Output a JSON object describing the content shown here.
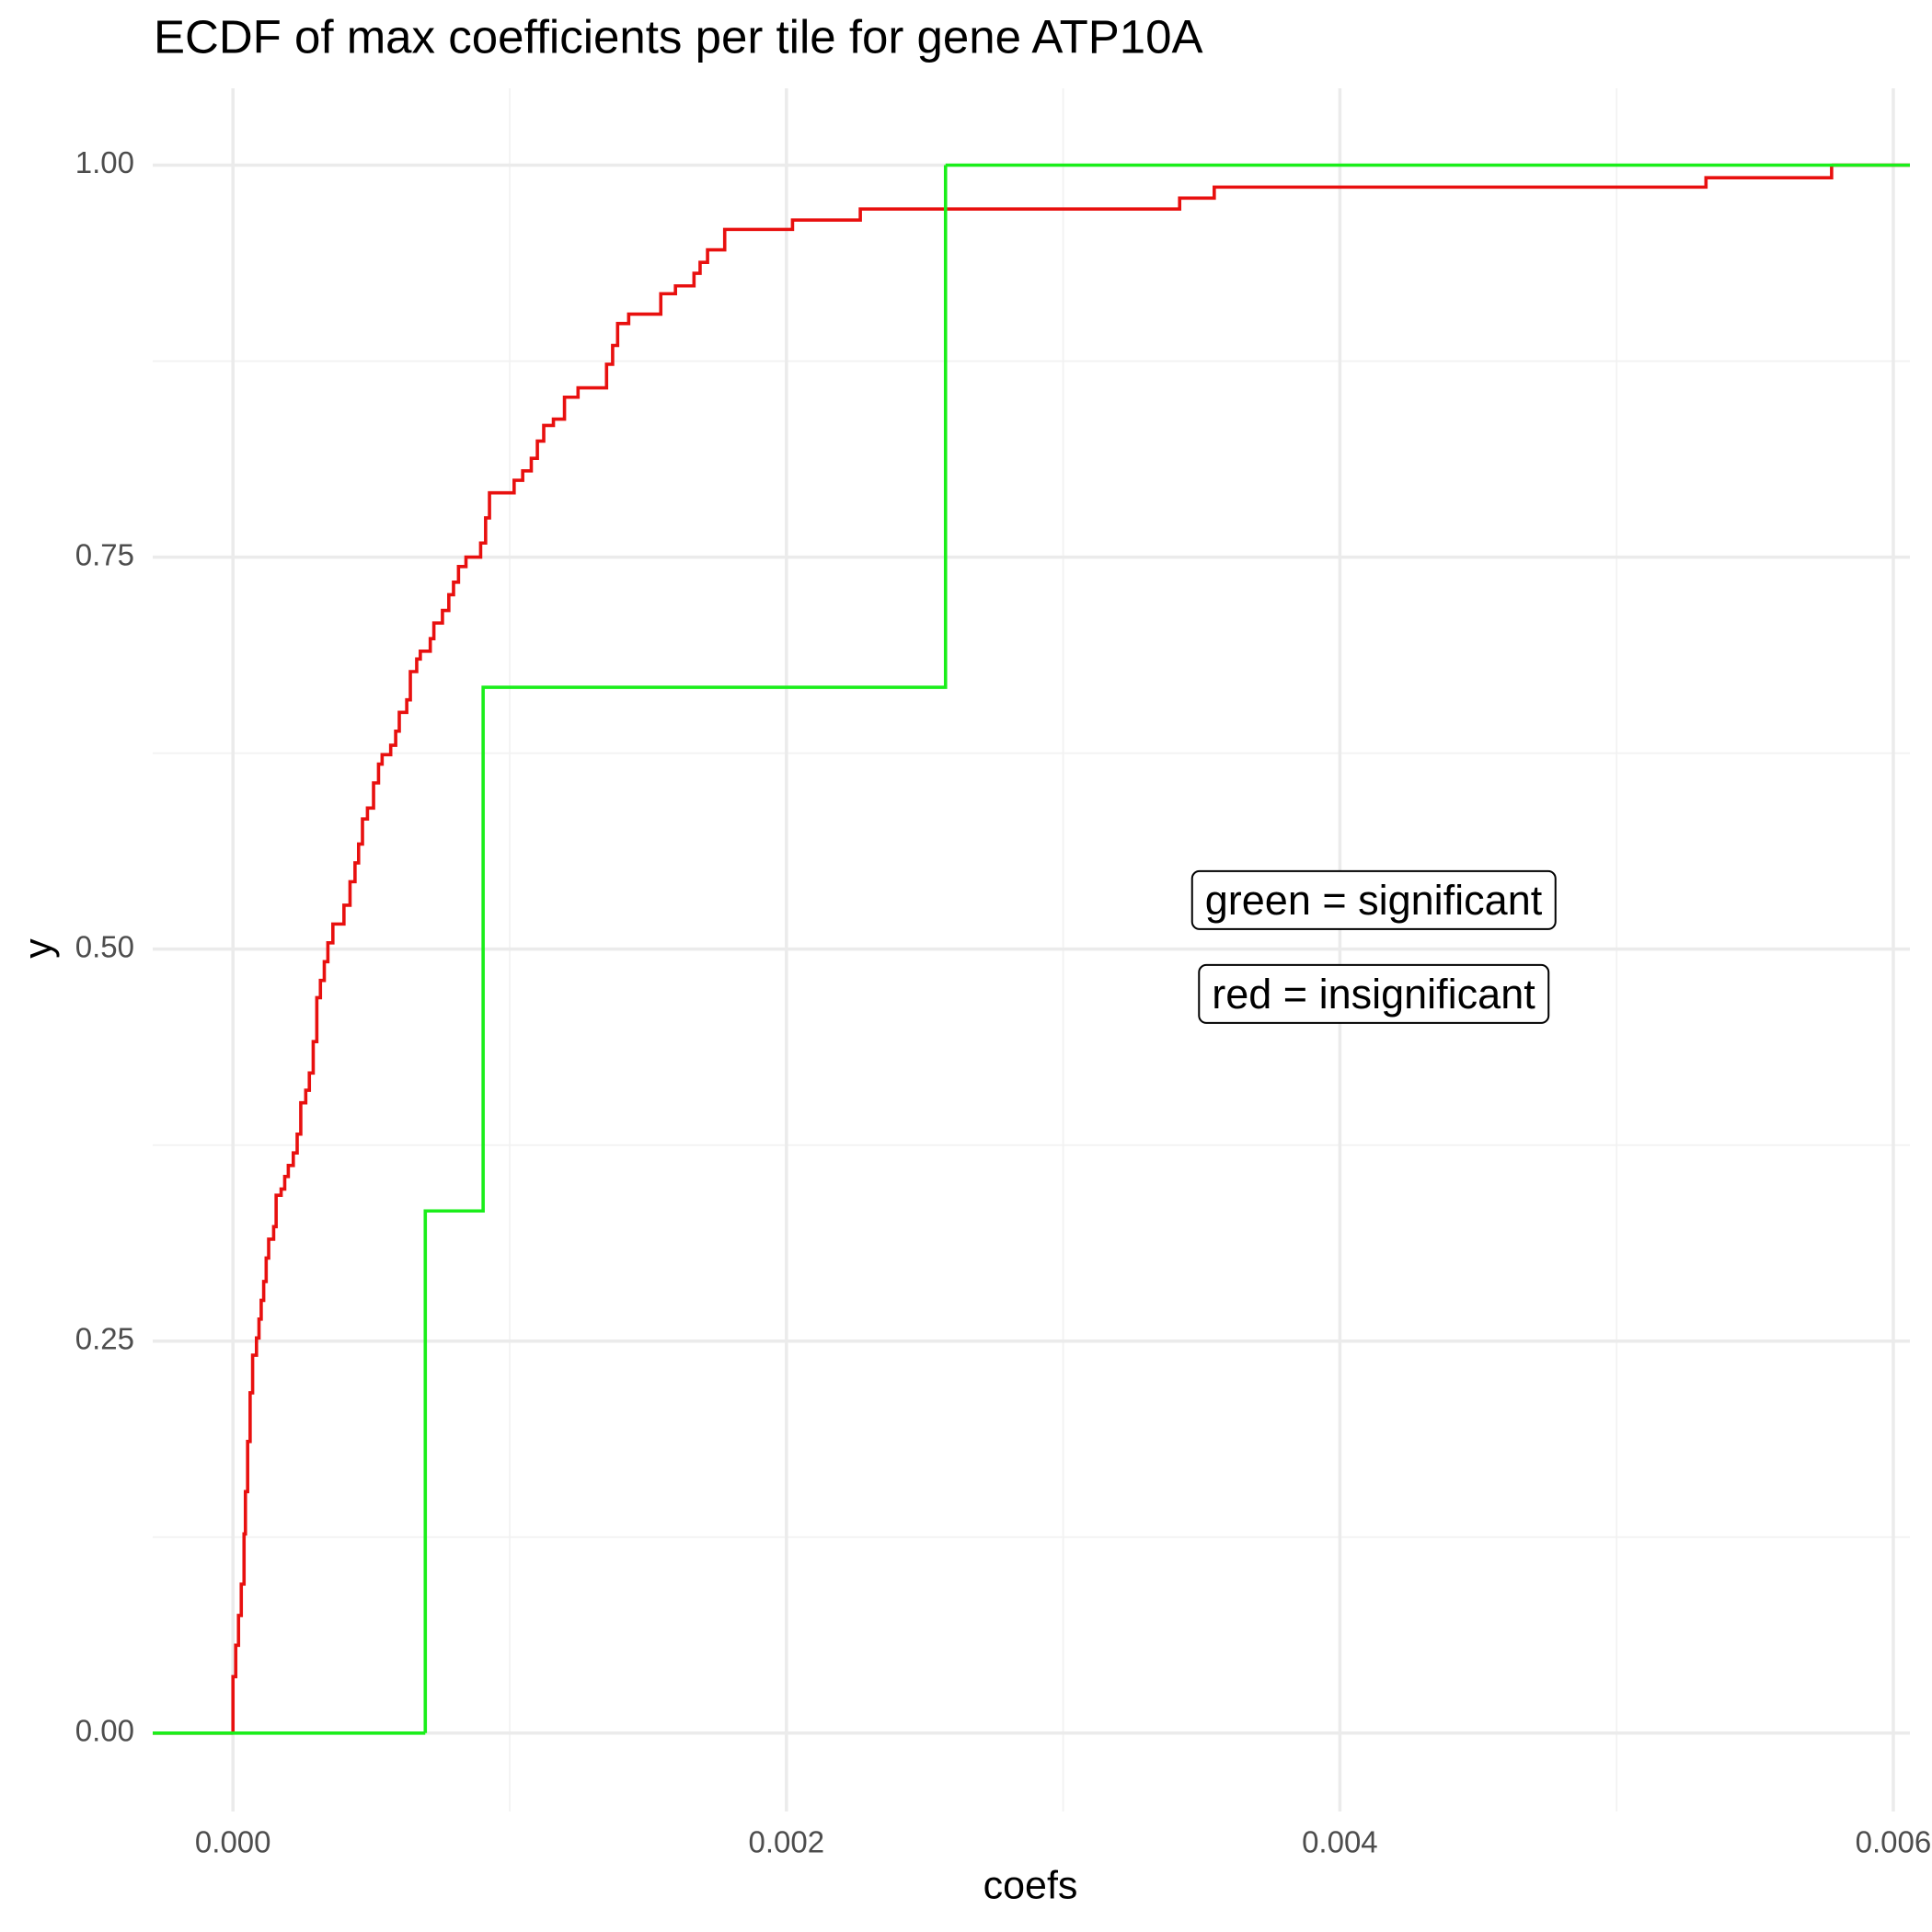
{
  "chart_data": {
    "type": "step",
    "title": "ECDF of max coefficients per tile for gene ATP10A",
    "x_label": "coefs",
    "y_label": "y",
    "annotations": [
      "green = significant",
      "red = insignificant"
    ],
    "xlim": [
      -0.00029,
      0.00606
    ],
    "ylim": [
      -0.05,
      1.049
    ],
    "xticks": [
      {
        "value": 0,
        "label": "0.000"
      },
      {
        "value": 0.002,
        "label": "0.002"
      },
      {
        "value": 0.004,
        "label": "0.004"
      },
      {
        "value": 0.006,
        "label": "0.006"
      }
    ],
    "x_minor_ticks": [
      0.001,
      0.003,
      0.005
    ],
    "yticks": [
      {
        "value": 0,
        "label": "0.00"
      },
      {
        "value": 0.25,
        "label": "0.25"
      },
      {
        "value": 0.5,
        "label": "0.50"
      },
      {
        "value": 0.75,
        "label": "0.75"
      },
      {
        "value": 1,
        "label": "1.00"
      }
    ],
    "y_minor_ticks": [
      0.125,
      0.375,
      0.625,
      0.875
    ],
    "grid": true,
    "series": [
      {
        "color": "#e8100f",
        "x": [
          0,
          1e-05,
          2e-05,
          3e-05,
          4e-05,
          4.5e-05,
          5.3e-05,
          6.2e-05,
          7.1e-05,
          8.5e-05,
          9.4e-05,
          0.000102,
          0.000111,
          0.00012,
          0.000129,
          0.000147,
          0.000156,
          0.000174,
          0.000187,
          0.0002,
          0.000218,
          0.000232,
          0.000245,
          0.000263,
          0.000276,
          0.00029,
          0.000303,
          0.000316,
          0.00033,
          0.000343,
          0.000361,
          0.000401,
          0.000423,
          0.000441,
          0.000454,
          0.000468,
          0.000486,
          0.000508,
          0.000526,
          0.000539,
          0.00057,
          0.000588,
          0.000601,
          0.000628,
          0.000641,
          0.000664,
          0.000677,
          0.000713,
          0.000726,
          0.000757,
          0.00078,
          0.000797,
          0.000815,
          0.000842,
          0.000895,
          0.000913,
          0.000927,
          0.001016,
          0.001047,
          0.001078,
          0.0011,
          0.001123,
          0.001158,
          0.001198,
          0.001247,
          0.00135,
          0.001372,
          0.00139,
          0.00143,
          0.001546,
          0.001599,
          0.001666,
          0.001688,
          0.001715,
          0.001777,
          0.002022,
          0.002267,
          0.003421,
          0.003546,
          0.005323,
          0.005777
        ],
        "values": [
          0.036,
          0.056,
          0.075,
          0.095,
          0.127,
          0.154,
          0.186,
          0.217,
          0.241,
          0.252,
          0.264,
          0.276,
          0.288,
          0.303,
          0.315,
          0.323,
          0.343,
          0.347,
          0.355,
          0.362,
          0.37,
          0.382,
          0.402,
          0.41,
          0.421,
          0.441,
          0.469,
          0.48,
          0.492,
          0.504,
          0.516,
          0.528,
          0.543,
          0.555,
          0.567,
          0.583,
          0.59,
          0.606,
          0.618,
          0.624,
          0.63,
          0.639,
          0.651,
          0.659,
          0.677,
          0.685,
          0.69,
          0.698,
          0.708,
          0.716,
          0.726,
          0.734,
          0.744,
          0.75,
          0.759,
          0.775,
          0.791,
          0.799,
          0.805,
          0.813,
          0.824,
          0.834,
          0.838,
          0.852,
          0.858,
          0.873,
          0.885,
          0.899,
          0.905,
          0.918,
          0.923,
          0.931,
          0.938,
          0.946,
          0.959,
          0.965,
          0.972,
          0.979,
          0.986,
          0.992,
          1
        ]
      },
      {
        "color": "#1aee1a",
        "x": [
          0.000695,
          0.000904,
          0.002575
        ],
        "values": [
          0.333,
          0.667,
          1
        ]
      }
    ]
  }
}
